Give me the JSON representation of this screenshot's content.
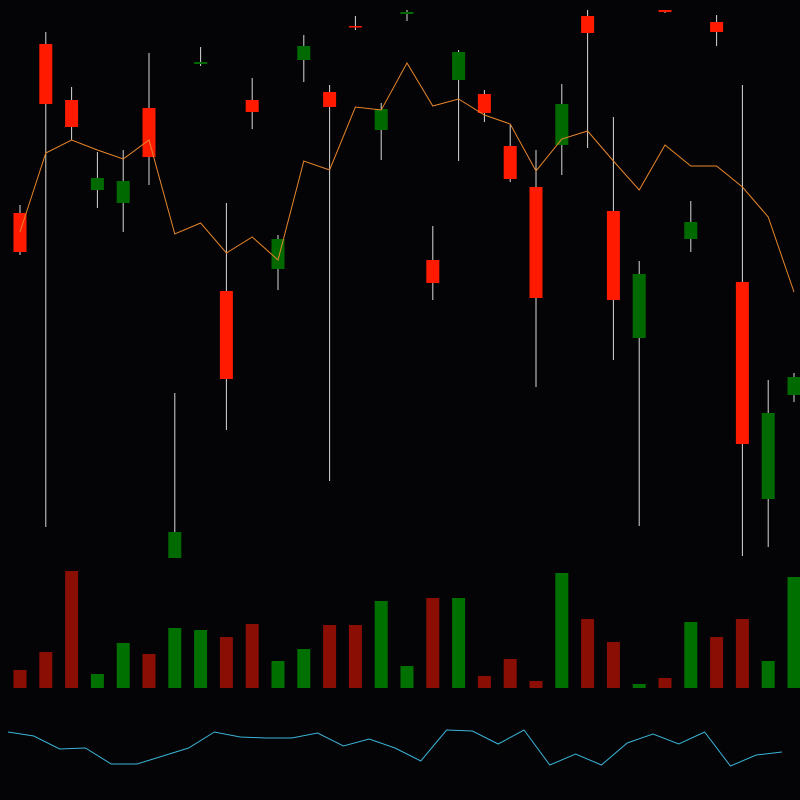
{
  "chart_data": {
    "type": "candlestick",
    "up_color": "#006a00",
    "down_color": "#ff1a00",
    "volume_up_color": "#007000",
    "volume_down_color": "#8b0e04",
    "open": [
      347,
      516,
      460,
      370,
      357,
      452,
      2,
      496,
      269,
      460,
      291,
      500,
      468,
      534,
      430,
      546,
      300,
      480,
      466,
      414,
      373,
      415,
      544,
      349,
      222,
      550,
      321,
      538,
      278,
      61,
      165
    ],
    "close": [
      308,
      456,
      433,
      382,
      379,
      403,
      28,
      498,
      181,
      448,
      321,
      514,
      453,
      533,
      451,
      548,
      277,
      508,
      447,
      381,
      262,
      456,
      527,
      260,
      286,
      548,
      338,
      528,
      116,
      147,
      183
    ],
    "high": [
      355,
      528,
      473,
      408,
      410,
      507,
      167,
      513,
      357,
      482,
      325,
      525,
      475,
      544,
      457,
      550,
      334,
      510,
      470,
      435,
      410,
      476,
      550,
      443,
      299,
      550,
      359,
      545,
      475,
      180,
      187
    ],
    "low": [
      305,
      33,
      420,
      352,
      328,
      375,
      2,
      494,
      130,
      431,
      270,
      478,
      79,
      530,
      400,
      539,
      260,
      399,
      438,
      378,
      173,
      385,
      412,
      200,
      34,
      547,
      308,
      514,
      4,
      13,
      158
    ],
    "ylim": [
      0,
      560
    ],
    "moving_average": {
      "color": "#e8862a",
      "values": [
        328,
        407,
        420,
        410,
        401,
        420,
        326,
        337,
        307,
        323,
        300,
        399,
        390,
        453,
        450,
        497,
        454,
        461,
        445,
        436,
        389,
        421,
        429,
        399,
        370,
        415,
        394,
        394,
        373,
        343,
        268
      ]
    },
    "volume": {
      "values": [
        18,
        36,
        117,
        14,
        45,
        34,
        60,
        58,
        51,
        64,
        27,
        39,
        63,
        63,
        87,
        22,
        90,
        90,
        12,
        29,
        7,
        115,
        69,
        46,
        4,
        10,
        66,
        51,
        69,
        27,
        111
      ],
      "ylim": [
        0,
        128
      ]
    },
    "indicator": {
      "color": "#3cb4d8",
      "values": [
        68,
        64,
        51,
        52,
        36,
        36,
        44,
        52,
        68,
        63,
        62,
        62,
        67,
        54,
        61,
        52,
        39,
        70,
        69,
        56,
        70,
        35,
        46,
        35,
        57,
        66,
        56,
        68,
        34,
        45,
        48
      ],
      "ylim": [
        0,
        100
      ]
    }
  }
}
